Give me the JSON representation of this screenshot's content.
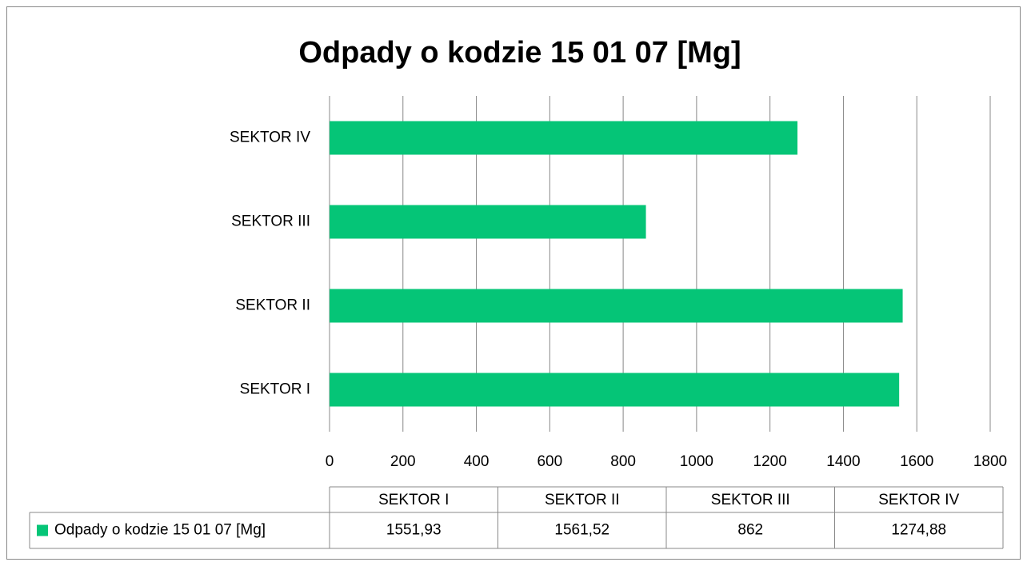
{
  "chart_data": {
    "type": "bar",
    "orientation": "horizontal",
    "title": "Odpady o kodzie 15 01 07 [Mg]",
    "categories": [
      "SEKTOR I",
      "SEKTOR II",
      "SEKTOR III",
      "SEKTOR IV"
    ],
    "series": [
      {
        "name": "Odpady o kodzie 15 01 07 [Mg]",
        "color": "#05c577",
        "values": [
          1551.93,
          1561.52,
          862,
          1274.88
        ],
        "value_labels": [
          "1551,93",
          "1561,52",
          "862",
          "1274,88"
        ]
      }
    ],
    "xlim": [
      0,
      1800
    ],
    "xticks": [
      0,
      200,
      400,
      600,
      800,
      1000,
      1200,
      1400,
      1600,
      1800
    ],
    "grid": true,
    "data_table": true
  }
}
